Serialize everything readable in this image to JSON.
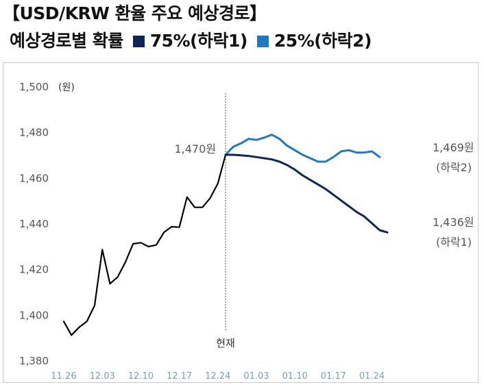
{
  "title": "【USD/KRW 환율 주요 예상경로】",
  "subtitle": "예상경로별 확률",
  "legend": [
    {
      "label": "75%(하락1)",
      "color": "#0d2557"
    },
    {
      "label": "25%(하락2)",
      "color": "#1f78c1"
    }
  ],
  "chart_data": {
    "type": "line",
    "ylabel": "(원)",
    "ylim": [
      1380,
      1500
    ],
    "yticks": [
      "1,380",
      "1,400",
      "1,420",
      "1,440",
      "1,460",
      "1,480",
      "1,500"
    ],
    "xticks": [
      "11.26",
      "12.03",
      "12.10",
      "12.17",
      "12.24",
      "01.03",
      "01.10",
      "01.17",
      "01.24"
    ],
    "now_label": "현재",
    "now_value_label": "1,470원",
    "series": [
      {
        "key": "history",
        "color": "#000000",
        "points": [
          [
            0,
            1397
          ],
          [
            1,
            1391
          ],
          [
            2,
            1394.5
          ],
          [
            3,
            1397
          ],
          [
            4,
            1404
          ],
          [
            5,
            1428.5
          ],
          [
            6,
            1413.5
          ],
          [
            7,
            1416.5
          ],
          [
            8,
            1423
          ],
          [
            9,
            1431
          ],
          [
            10,
            1431.5
          ],
          [
            11,
            1429.8
          ],
          [
            12,
            1430.5
          ],
          [
            13,
            1436
          ],
          [
            14,
            1438.5
          ],
          [
            15,
            1438.3
          ],
          [
            16,
            1451.5
          ],
          [
            17,
            1447
          ],
          [
            18,
            1447
          ],
          [
            19,
            1451
          ],
          [
            20,
            1457.5
          ],
          [
            21,
            1470
          ]
        ]
      },
      {
        "key": "down2",
        "color": "#1f78c1",
        "end_value": "1,469원",
        "end_label": "(하락2)",
        "points": [
          [
            21,
            1470
          ],
          [
            22,
            1473.5
          ],
          [
            23,
            1475
          ],
          [
            24,
            1477
          ],
          [
            25,
            1476.5
          ],
          [
            26,
            1477.5
          ],
          [
            27,
            1478.8
          ],
          [
            28,
            1477
          ],
          [
            29,
            1474
          ],
          [
            30,
            1472
          ],
          [
            31,
            1470
          ],
          [
            32,
            1468.5
          ],
          [
            33,
            1467
          ],
          [
            34,
            1467
          ],
          [
            35,
            1469
          ],
          [
            36,
            1471.5
          ],
          [
            37,
            1472
          ],
          [
            38,
            1471
          ],
          [
            39,
            1471
          ],
          [
            40,
            1471.5
          ],
          [
            41,
            1469
          ]
        ]
      },
      {
        "key": "down1",
        "color": "#0d2557",
        "end_value": "1,436원",
        "end_label": "(하락1)",
        "points": [
          [
            21,
            1470
          ],
          [
            22,
            1470
          ],
          [
            23,
            1469.8
          ],
          [
            24,
            1469.5
          ],
          [
            25,
            1469
          ],
          [
            26,
            1468.5
          ],
          [
            27,
            1468
          ],
          [
            28,
            1467
          ],
          [
            29,
            1465.5
          ],
          [
            30,
            1463.5
          ],
          [
            31,
            1461
          ],
          [
            32,
            1459
          ],
          [
            33,
            1457
          ],
          [
            34,
            1455
          ],
          [
            35,
            1452.5
          ],
          [
            36,
            1450
          ],
          [
            37,
            1447.5
          ],
          [
            38,
            1445
          ],
          [
            39,
            1443
          ],
          [
            40,
            1440
          ],
          [
            41,
            1437
          ],
          [
            42,
            1436
          ]
        ]
      }
    ]
  }
}
